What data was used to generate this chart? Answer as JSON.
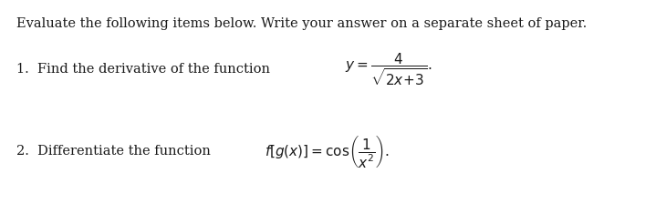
{
  "background_color": "#ffffff",
  "header": "Evaluate the following items below. Write your answer on a separate sheet of paper.",
  "item1_prefix": "1.  Find the derivative of the function ",
  "item2_prefix": "2.  Differentiate the function ",
  "fontsize": 10.5,
  "math_fontsize": 11.0,
  "text_color": "#1a1a1a"
}
